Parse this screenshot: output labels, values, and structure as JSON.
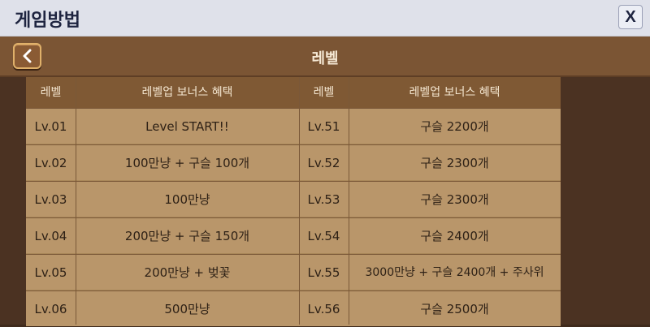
{
  "window": {
    "title": "게임방법",
    "close_label": "X"
  },
  "header": {
    "title": "레벨"
  },
  "table": {
    "columns": [
      "레벨",
      "레벨업 보너스 혜택",
      "레벨",
      "레벨업 보너스 혜택"
    ],
    "rows": [
      [
        "Lv.01",
        "Level START!!",
        "Lv.51",
        "구슬 2200개"
      ],
      [
        "Lv.02",
        "100만냥 + 구슬 100개",
        "Lv.52",
        "구슬 2300개"
      ],
      [
        "Lv.03",
        "100만냥",
        "Lv.53",
        "구슬 2300개"
      ],
      [
        "Lv.04",
        "200만냥 + 구슬 150개",
        "Lv.54",
        "구슬 2400개"
      ],
      [
        "Lv.05",
        "200만냥 + 벚꽃",
        "Lv.55",
        "3000만냥 + 구슬 2400개 + 주사위"
      ],
      [
        "Lv.06",
        "500만냥",
        "Lv.56",
        "구슬 2500개"
      ]
    ]
  }
}
